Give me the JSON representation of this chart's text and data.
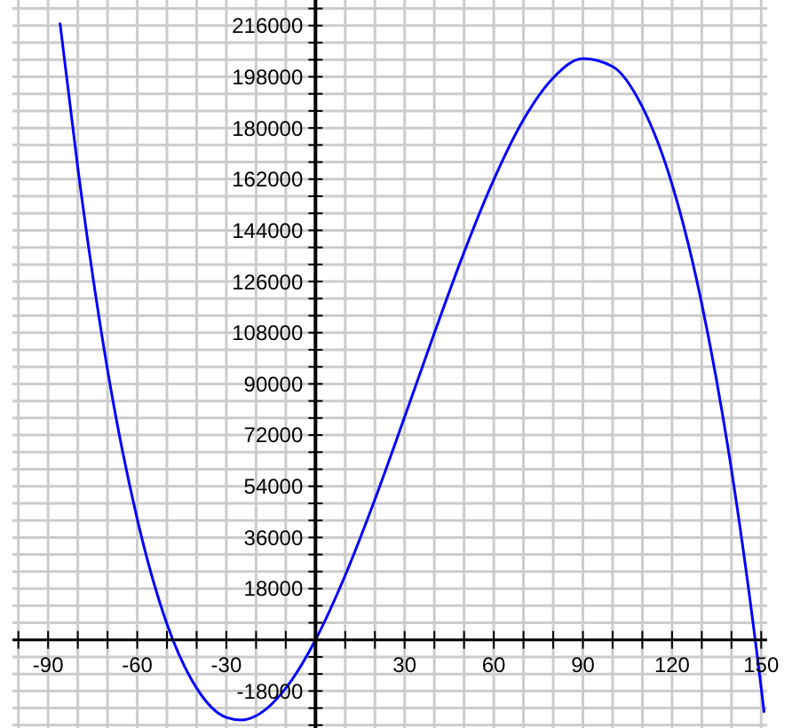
{
  "chart_data": {
    "type": "line",
    "x": [
      -86,
      -80,
      -70,
      -60,
      -50,
      -40,
      -30,
      -25,
      -20,
      -10,
      0,
      10,
      20,
      30,
      40,
      50,
      60,
      70,
      80,
      90,
      100,
      110,
      120,
      130,
      140,
      150,
      151
    ],
    "series": [
      {
        "color": "#0000ff",
        "values": [
          217000,
          166000,
          95000,
          42500,
          5600,
          -17000,
          -27300,
          -28200,
          -26700,
          -17000,
          0,
          22700,
          49400,
          78400,
          107900,
          136300,
          161800,
          182900,
          197600,
          204400,
          201600,
          187400,
          160200,
          118200,
          59800,
          -16900,
          -25600
        ]
      }
    ],
    "xlim": [
      -102,
      152
    ],
    "ylim": [
      -31000,
      225000
    ],
    "xticks": [
      {
        "value": -100,
        "label": null
      },
      -90,
      {
        "value": -80,
        "label": null
      },
      {
        "value": -70,
        "label": null
      },
      -60,
      {
        "value": -50,
        "label": null
      },
      {
        "value": -40,
        "label": null
      },
      -30,
      {
        "value": -20,
        "label": null
      },
      {
        "value": -10,
        "label": null
      },
      {
        "value": 0,
        "label": null
      },
      {
        "value": 10,
        "label": null
      },
      {
        "value": 20,
        "label": null
      },
      30,
      {
        "value": 40,
        "label": null
      },
      {
        "value": 50,
        "label": null
      },
      60,
      {
        "value": 70,
        "label": null
      },
      {
        "value": 80,
        "label": null
      },
      90,
      {
        "value": 100,
        "label": null
      },
      {
        "value": 110,
        "label": null
      },
      120,
      {
        "value": 130,
        "label": null
      },
      {
        "value": 140,
        "label": null
      },
      150
    ],
    "yticks": [
      {
        "value": -30000,
        "label": null
      },
      {
        "value": -24000,
        "label": null
      },
      -18000,
      {
        "value": -12000,
        "label": null
      },
      {
        "value": -6000,
        "label": null
      },
      {
        "value": 0,
        "label": null
      },
      {
        "value": 6000,
        "label": null
      },
      {
        "value": 12000,
        "label": null
      },
      18000,
      {
        "value": 24000,
        "label": null
      },
      {
        "value": 30000,
        "label": null
      },
      36000,
      {
        "value": 42000,
        "label": null
      },
      {
        "value": 48000,
        "label": null
      },
      54000,
      {
        "value": 60000,
        "label": null
      },
      {
        "value": 66000,
        "label": null
      },
      72000,
      {
        "value": 78000,
        "label": null
      },
      {
        "value": 84000,
        "label": null
      },
      90000,
      {
        "value": 96000,
        "label": null
      },
      {
        "value": 102000,
        "label": null
      },
      108000,
      {
        "value": 114000,
        "label": null
      },
      {
        "value": 120000,
        "label": null
      },
      126000,
      {
        "value": 132000,
        "label": null
      },
      {
        "value": 138000,
        "label": null
      },
      144000,
      {
        "value": 150000,
        "label": null
      },
      {
        "value": 156000,
        "label": null
      },
      162000,
      {
        "value": 168000,
        "label": null
      },
      {
        "value": 174000,
        "label": null
      },
      180000,
      {
        "value": 186000,
        "label": null
      },
      {
        "value": 192000,
        "label": null
      },
      198000,
      {
        "value": 204000,
        "label": null
      },
      {
        "value": 210000,
        "label": null
      },
      216000,
      {
        "value": 222000,
        "label": null
      }
    ],
    "grid": true,
    "marker": "none",
    "line_style": "solid"
  }
}
